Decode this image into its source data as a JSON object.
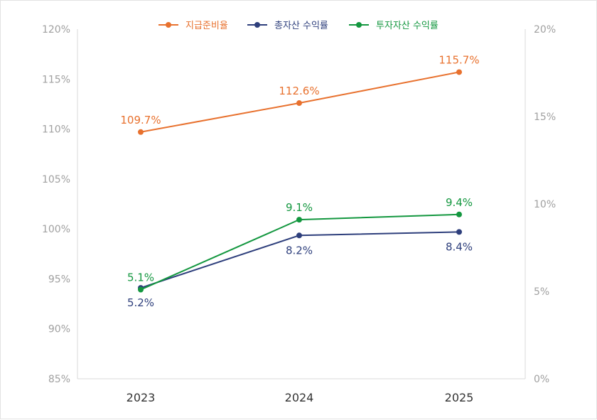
{
  "chart_data": {
    "type": "line",
    "categories": [
      "2023",
      "2024",
      "2025"
    ],
    "series": [
      {
        "name": "지급준비율",
        "axis": "left",
        "color": "#e8712e",
        "values": [
          109.7,
          112.6,
          115.7
        ],
        "labels": [
          "109.7%",
          "112.6%",
          "115.7%"
        ],
        "label_position": [
          "above",
          "above",
          "above"
        ]
      },
      {
        "name": "총자산 수익률",
        "axis": "right",
        "color": "#2e3f7c",
        "values": [
          5.2,
          8.2,
          8.4
        ],
        "labels": [
          "5.2%",
          "8.2%",
          "8.4%"
        ],
        "label_position": [
          "below",
          "below",
          "below"
        ]
      },
      {
        "name": "투자자산 수익률",
        "axis": "right",
        "color": "#13973f",
        "values": [
          5.1,
          9.1,
          9.4
        ],
        "labels": [
          "5.1%",
          "9.1%",
          "9.4%"
        ],
        "label_position": [
          "above",
          "above",
          "above"
        ]
      }
    ],
    "y_left": {
      "min": 85,
      "max": 120,
      "ticks": [
        85,
        90,
        95,
        100,
        105,
        110,
        115,
        120
      ],
      "tick_labels": [
        "85%",
        "90%",
        "95%",
        "100%",
        "105%",
        "110%",
        "115%",
        "120%"
      ]
    },
    "y_right": {
      "min": 0,
      "max": 20,
      "ticks": [
        0,
        5,
        10,
        15,
        20
      ],
      "tick_labels": [
        "0%",
        "5%",
        "10%",
        "15%",
        "20%"
      ]
    },
    "legend": "top-center",
    "grid": false
  }
}
